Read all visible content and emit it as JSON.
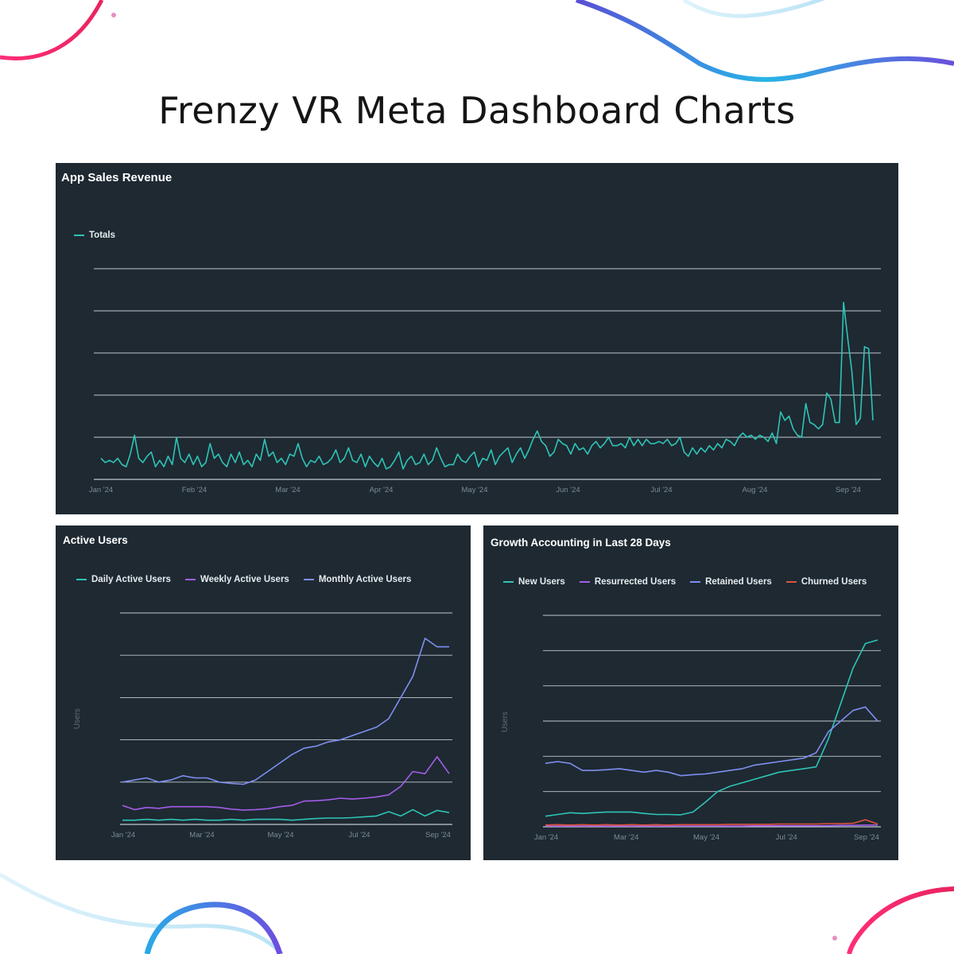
{
  "page": {
    "title": "Frenzy VR Meta Dashboard Charts"
  },
  "colors": {
    "panel_bg": "#1e2932",
    "grid": "#dfe6ea",
    "teal": "#2ec4b6",
    "purple": "#a45de8",
    "blue": "#7f8ff0",
    "red": "#e0533c",
    "tick": "#7d8a93"
  },
  "chart_data": [
    {
      "id": "revenue",
      "type": "line",
      "title": "App Sales Revenue",
      "xlabel": "",
      "ylabel": "",
      "grid": true,
      "legend_position": "top-left",
      "x_tick_labels": [
        "Jan '24",
        "Feb '24",
        "Mar '24",
        "Apr '24",
        "May '24",
        "Jun '24",
        "Jul '24",
        "Aug '24",
        "Sep '24"
      ],
      "ylim": [
        0,
        5
      ],
      "series": [
        {
          "name": "Totals",
          "color": "#2ec4b6",
          "values": [
            0.5,
            0.4,
            0.45,
            0.4,
            0.5,
            0.35,
            0.3,
            0.6,
            1.05,
            0.5,
            0.4,
            0.55,
            0.65,
            0.3,
            0.45,
            0.3,
            0.55,
            0.35,
            1.0,
            0.5,
            0.4,
            0.6,
            0.35,
            0.55,
            0.3,
            0.4,
            0.85,
            0.5,
            0.6,
            0.4,
            0.3,
            0.6,
            0.4,
            0.65,
            0.35,
            0.45,
            0.3,
            0.6,
            0.45,
            0.95,
            0.55,
            0.65,
            0.4,
            0.5,
            0.35,
            0.6,
            0.55,
            0.85,
            0.5,
            0.3,
            0.45,
            0.4,
            0.55,
            0.35,
            0.4,
            0.5,
            0.7,
            0.4,
            0.5,
            0.75,
            0.45,
            0.4,
            0.6,
            0.3,
            0.55,
            0.4,
            0.3,
            0.5,
            0.25,
            0.3,
            0.45,
            0.65,
            0.25,
            0.45,
            0.55,
            0.35,
            0.4,
            0.6,
            0.35,
            0.45,
            0.75,
            0.5,
            0.3,
            0.35,
            0.35,
            0.6,
            0.45,
            0.4,
            0.55,
            0.65,
            0.3,
            0.5,
            0.45,
            0.7,
            0.35,
            0.55,
            0.65,
            0.75,
            0.4,
            0.6,
            0.75,
            0.5,
            0.7,
            0.95,
            1.15,
            0.9,
            0.8,
            0.55,
            0.65,
            0.95,
            0.85,
            0.8,
            0.6,
            0.85,
            0.7,
            0.75,
            0.6,
            0.8,
            0.9,
            0.75,
            0.85,
            1.0,
            0.8,
            0.8,
            0.85,
            0.75,
            1.0,
            0.8,
            0.95,
            0.8,
            0.95,
            0.85,
            0.85,
            0.9,
            0.85,
            0.95,
            0.8,
            0.85,
            1.0,
            0.65,
            0.55,
            0.75,
            0.6,
            0.75,
            0.65,
            0.8,
            0.7,
            0.85,
            0.75,
            0.95,
            0.9,
            0.8,
            1.0,
            1.1,
            1.0,
            1.05,
            0.95,
            1.05,
            1.0,
            0.9,
            1.1,
            0.85,
            1.6,
            1.4,
            1.5,
            1.2,
            1.05,
            1.0,
            1.8,
            1.35,
            1.3,
            1.2,
            1.3,
            2.05,
            1.9,
            1.35,
            1.35,
            4.2,
            3.35,
            2.55,
            1.3,
            1.45,
            3.15,
            3.1,
            1.4
          ]
        }
      ]
    },
    {
      "id": "active-users",
      "type": "line",
      "title": "Active Users",
      "xlabel": "",
      "ylabel": "Users",
      "grid": true,
      "legend_position": "top-left",
      "x_tick_labels": [
        "Jan '24",
        "Mar '24",
        "May '24",
        "Jul '24",
        "Sep '24"
      ],
      "ylim": [
        0,
        5
      ],
      "series": [
        {
          "name": "Daily Active Users",
          "color": "#2ec4b6",
          "values": [
            0.1,
            0.1,
            0.12,
            0.1,
            0.12,
            0.1,
            0.12,
            0.1,
            0.1,
            0.12,
            0.1,
            0.12,
            0.12,
            0.12,
            0.1,
            0.12,
            0.14,
            0.15,
            0.15,
            0.16,
            0.18,
            0.2,
            0.3,
            0.2,
            0.35,
            0.2,
            0.33,
            0.28
          ]
        },
        {
          "name": "Weekly Active Users",
          "color": "#a45de8",
          "values": [
            0.45,
            0.35,
            0.4,
            0.38,
            0.42,
            0.42,
            0.42,
            0.42,
            0.4,
            0.36,
            0.34,
            0.35,
            0.37,
            0.42,
            0.45,
            0.55,
            0.56,
            0.58,
            0.62,
            0.6,
            0.62,
            0.65,
            0.7,
            0.9,
            1.25,
            1.2,
            1.6,
            1.2
          ]
        },
        {
          "name": "Monthly Active Users",
          "color": "#7f8ff0",
          "values": [
            1.0,
            1.05,
            1.1,
            1.0,
            1.05,
            1.15,
            1.1,
            1.1,
            1.0,
            0.97,
            0.95,
            1.05,
            1.25,
            1.45,
            1.65,
            1.8,
            1.85,
            1.95,
            2.0,
            2.1,
            2.2,
            2.3,
            2.5,
            3.0,
            3.5,
            4.4,
            4.2,
            4.2
          ]
        }
      ]
    },
    {
      "id": "growth-accounting",
      "type": "line",
      "title": "Growth Accounting in Last 28 Days",
      "xlabel": "",
      "ylabel": "Users",
      "grid": true,
      "legend_position": "top-left",
      "x_tick_labels": [
        "Jan '24",
        "Mar '24",
        "May '24",
        "Jul '24",
        "Sep '24"
      ],
      "ylim": [
        0,
        6
      ],
      "series": [
        {
          "name": "New Users",
          "color": "#2ec4b6",
          "values": [
            0.3,
            0.35,
            0.4,
            0.38,
            0.4,
            0.42,
            0.42,
            0.42,
            0.38,
            0.35,
            0.35,
            0.34,
            0.42,
            0.7,
            1.0,
            1.15,
            1.25,
            1.35,
            1.45,
            1.55,
            1.6,
            1.65,
            1.7,
            2.5,
            3.5,
            4.5,
            5.2,
            5.3
          ]
        },
        {
          "name": "Resurrected Users",
          "color": "#a45de8",
          "values": [
            0.02,
            0.02,
            0.02,
            0.02,
            0.02,
            0.02,
            0.02,
            0.02,
            0.02,
            0.02,
            0.02,
            0.02,
            0.02,
            0.02,
            0.02,
            0.02,
            0.02,
            0.03,
            0.03,
            0.03,
            0.03,
            0.03,
            0.03,
            0.03,
            0.04,
            0.04,
            0.05,
            0.05
          ]
        },
        {
          "name": "Retained Users",
          "color": "#7f8ff0",
          "values": [
            1.8,
            1.85,
            1.8,
            1.6,
            1.6,
            1.62,
            1.65,
            1.6,
            1.55,
            1.6,
            1.55,
            1.45,
            1.48,
            1.5,
            1.55,
            1.6,
            1.65,
            1.75,
            1.8,
            1.85,
            1.9,
            1.95,
            2.1,
            2.7,
            3.0,
            3.3,
            3.4,
            3.0
          ]
        },
        {
          "name": "Churned Users",
          "color": "#e0533c",
          "values": [
            0.05,
            0.06,
            0.05,
            0.06,
            0.05,
            0.06,
            0.05,
            0.06,
            0.05,
            0.06,
            0.05,
            0.06,
            0.06,
            0.06,
            0.06,
            0.07,
            0.07,
            0.07,
            0.07,
            0.08,
            0.08,
            0.08,
            0.08,
            0.09,
            0.09,
            0.1,
            0.2,
            0.08
          ]
        }
      ]
    }
  ]
}
